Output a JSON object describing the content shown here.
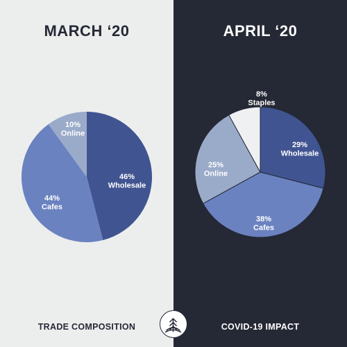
{
  "left_panel": {
    "title": "MARCH ‘20",
    "footer": "TRADE COMPOSITION"
  },
  "right_panel": {
    "title": "APRIL ‘20",
    "footer": "COVID-19 IMPACT"
  },
  "colors": {
    "left_bg": "#eceeed",
    "right_bg": "#252835",
    "wholesale": "#3f5490",
    "cafes": "#6a82c0",
    "online": "#9aaac9",
    "staples": "#eef0f2"
  },
  "logo_icon": "leaf-sprout-icon",
  "chart_data": [
    {
      "type": "pie",
      "title": "MARCH ‘20",
      "slices": [
        {
          "label": "Wholesale",
          "value": 46,
          "display": "46%",
          "color": "#3f5490"
        },
        {
          "label": "Cafes",
          "value": 44,
          "display": "44%",
          "color": "#6a82c0"
        },
        {
          "label": "Online",
          "value": 10,
          "display": "10%",
          "color": "#9aaac9"
        }
      ]
    },
    {
      "type": "pie",
      "title": "APRIL ‘20",
      "slices": [
        {
          "label": "Wholesale",
          "value": 29,
          "display": "29%",
          "color": "#3f5490"
        },
        {
          "label": "Cafes",
          "value": 38,
          "display": "38%",
          "color": "#6a82c0"
        },
        {
          "label": "Online",
          "value": 25,
          "display": "25%",
          "color": "#9aaac9"
        },
        {
          "label": "Staples",
          "value": 8,
          "display": "8%",
          "color": "#eef0f2"
        }
      ]
    }
  ]
}
